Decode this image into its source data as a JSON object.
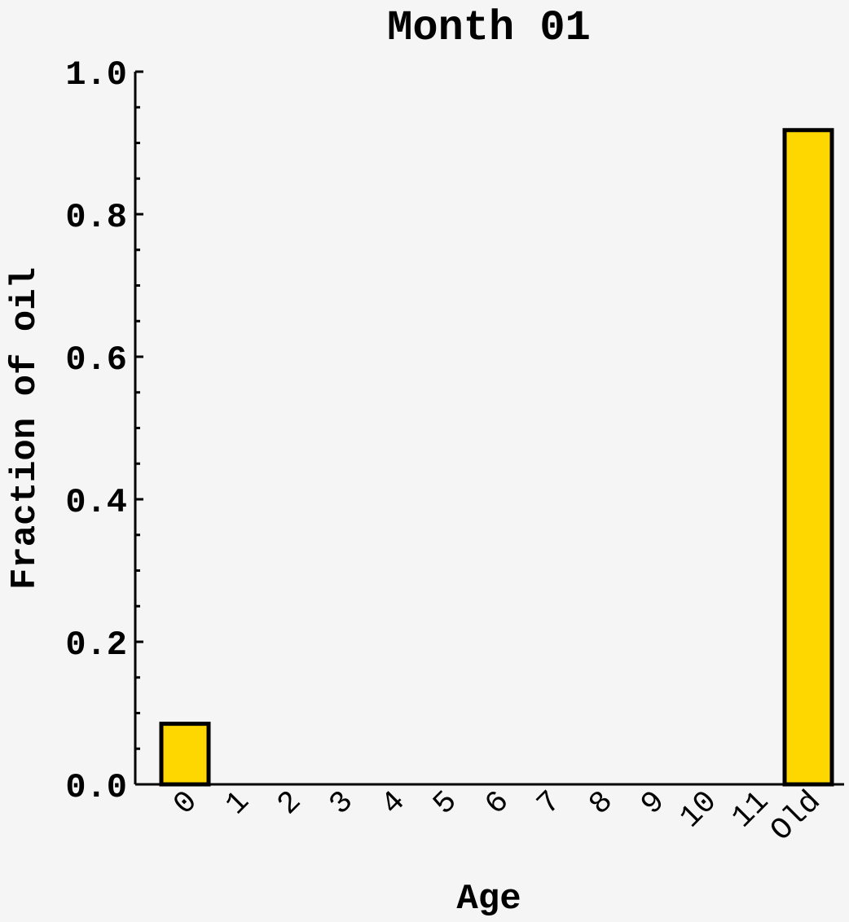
{
  "chart_data": {
    "type": "bar",
    "title": "Month 01",
    "xlabel": "Age",
    "ylabel": "Fraction of oil",
    "categories": [
      "0",
      "1",
      "2",
      "3",
      "4",
      "5",
      "6",
      "7",
      "8",
      "9",
      "10",
      "11",
      "Old"
    ],
    "values": [
      0.085,
      0,
      0,
      0,
      0,
      0,
      0,
      0,
      0,
      0,
      0,
      0,
      0.918
    ],
    "ylim": [
      0,
      1.0
    ],
    "yticks": [
      "0.0",
      "0.2",
      "0.4",
      "0.6",
      "0.8",
      "1.0"
    ],
    "grid": false,
    "legend": "none",
    "bar_color": "#ffd700",
    "background_color": "#f5f5f5"
  }
}
